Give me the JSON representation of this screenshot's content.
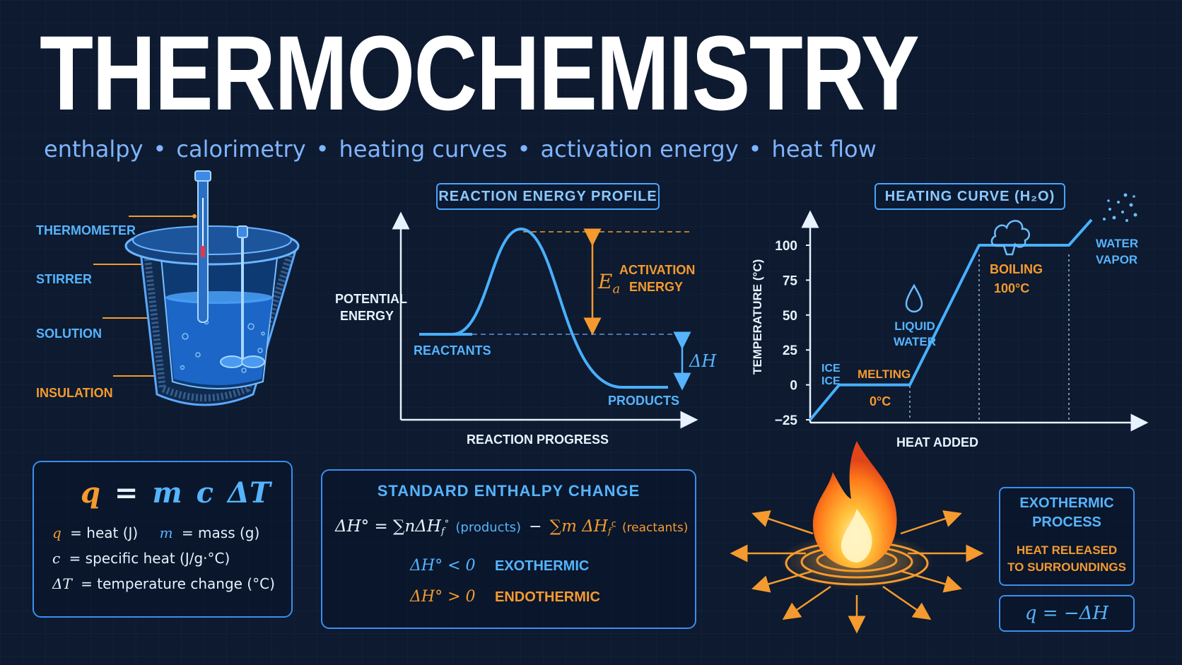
{
  "title": "THERMOCHEMISTRY",
  "subtitle": [
    "enthalpy",
    "calorimetry",
    "heating curves",
    "activation energy",
    "heat flow"
  ],
  "calorimeter": {
    "labels": {
      "thermometer": "THERMOMETER",
      "stirrer": "STIRRER",
      "solution": "SOLUTION",
      "insulation": "INSULATION"
    }
  },
  "energy_profile": {
    "title": "REACTION ENERGY PROFILE",
    "y_label_line1": "POTENTIAL",
    "y_label_line2": "ENERGY",
    "x_label": "REACTION PROGRESS",
    "reactants": "REACTANTS",
    "products": "PRODUCTS",
    "ea_symbol": "E",
    "ea_sub": "a",
    "ea_text_line1": "ACTIVATION",
    "ea_text_line2": "ENERGY",
    "delta_h": "ΔH"
  },
  "heating_curve": {
    "title": "HEATING CURVE (H₂O)",
    "y_label": "TEMPERATURE (°C)",
    "x_label": "HEAT ADDED",
    "y_ticks": [
      "100",
      "75",
      "50",
      "25",
      "0",
      "−25"
    ],
    "labels": {
      "ice_1": "ICE",
      "ice_2": "ICE",
      "melting": "MELTING",
      "zero": "0°C",
      "liquid_1": "LIQUID",
      "liquid_2": "WATER",
      "boiling": "BOILING",
      "hundred": "100°C",
      "vapor_1": "WATER",
      "vapor_2": "VAPOR"
    },
    "chart_data": {
      "type": "line",
      "x_label": "HEAT ADDED",
      "y_label": "TEMPERATURE (°C)",
      "ylim": [
        -25,
        100
      ],
      "points_y": [
        -25,
        0,
        0,
        100,
        100,
        120
      ]
    }
  },
  "formula_box": {
    "q": "q",
    "eq": "=",
    "m": "m",
    "c": "c",
    "dT": "ΔT",
    "row1_q": "q",
    "row1_q_def": "= heat (J)",
    "row1_m": "m",
    "row1_m_def": "= mass (g)",
    "row2_c": "c",
    "row2_c_def": "= specific heat (J/g·°C)",
    "row3_dT": "ΔT",
    "row3_dT_def": "= temperature change (°C)"
  },
  "enthalpy_box": {
    "title": "STANDARD ENTHALPY CHANGE",
    "eq_lhs": "ΔH° = ∑nΔH",
    "eq_f1": "f",
    "eq_products": "(products)",
    "eq_minus": "−",
    "eq_sum2": "∑m ΔH",
    "eq_f2": "f",
    "eq_reactants": "(reactants)",
    "neg": "ΔH° < 0",
    "neg_label": "EXOTHERMIC",
    "pos": "ΔH° > 0",
    "pos_label": "ENDOTHERMIC"
  },
  "exothermic": {
    "title_line1": "EXOTHERMIC",
    "title_line2": "PROCESS",
    "desc_line1": "HEAT RELEASED",
    "desc_line2": "TO SURROUNDINGS",
    "formula": "q = −ΔH"
  },
  "colors": {
    "accent": "#4aa3ff",
    "orange": "#f59a2e",
    "background": "#0d1a2f",
    "white": "#ffffff"
  }
}
